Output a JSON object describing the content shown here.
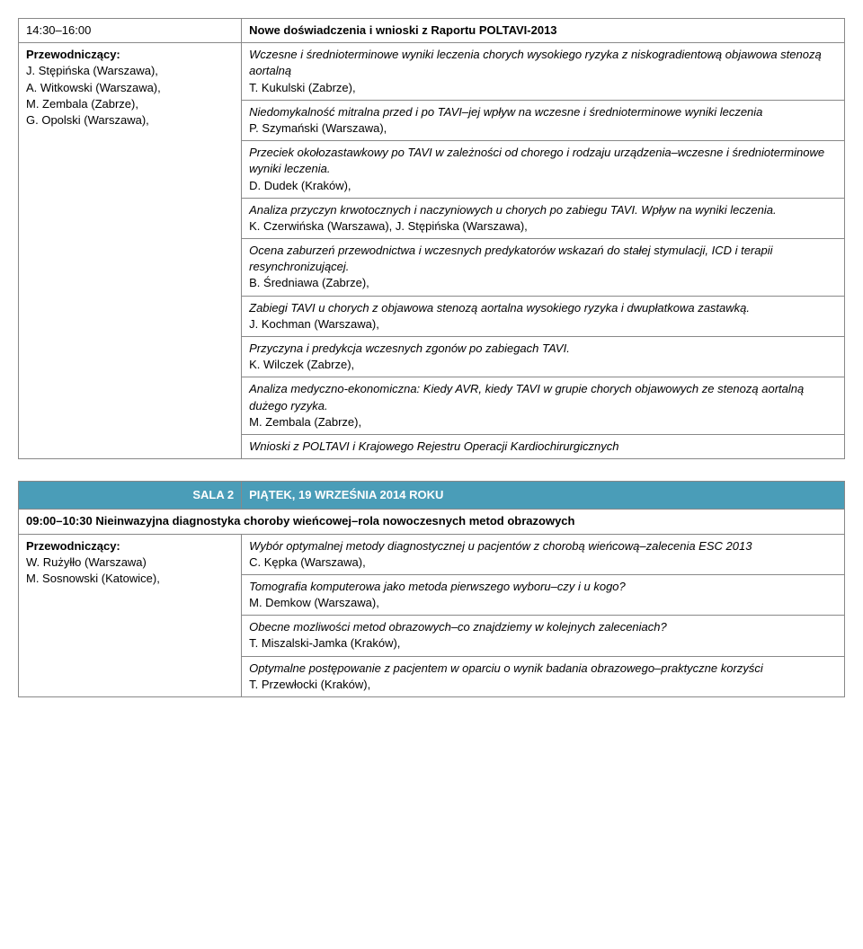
{
  "table1": {
    "col0_time": "14:30–16:00",
    "col1_title": "Nowe doświadczenia i wnioski z Raportu POLTAVI-2013",
    "chair_label": "Przewodniczący:",
    "chairs": [
      "J. Stępińska (Warszawa),",
      "A. Witkowski (Warszawa),",
      "M. Zembala (Zabrze),",
      "G. Opolski (Warszawa),"
    ],
    "rows": [
      {
        "talk_italic": "Wczesne i średnioterminowe wyniki leczenia chorych wysokiego ryzyka z niskogradientową objawowa stenozą aortalną",
        "speaker": "T. Kukulski (Zabrze),"
      },
      {
        "talk_italic": "Niedomykalność mitralna przed i po TAVI–jej wpływ na wczesne i średnioterminowe wyniki leczenia",
        "speaker": "P. Szymański (Warszawa),"
      },
      {
        "talk_italic": "Przeciek okołozastawkowy po TAVI w zależności od chorego i rodzaju urządzenia–wczesne i średnioterminowe wyniki leczenia.",
        "speaker": "D. Dudek (Kraków),"
      },
      {
        "talk_italic": "Analiza przyczyn krwotocznych i naczyniowych u chorych po zabiegu TAVI. Wpływ na wyniki leczenia.",
        "speaker": "K. Czerwińska (Warszawa), J. Stępińska (Warszawa),"
      },
      {
        "talk_italic": "Ocena zaburzeń przewodnictwa i wczesnych predykatorów wskazań do stałej stymulacji, ICD i terapii resynchronizującej.",
        "speaker": "B. Średniawa (Zabrze),"
      },
      {
        "talk_italic": "Zabiegi TAVI u chorych z objawowa stenozą aortalna wysokiego ryzyka i dwupłatkowa zastawką.",
        "speaker": "J. Kochman (Warszawa),"
      },
      {
        "talk_italic": "Przyczyna i predykcja wczesnych zgonów po zabiegach TAVI.",
        "speaker": "K. Wilczek (Zabrze),"
      },
      {
        "talk_italic": "Analiza medyczno-ekonomiczna: Kiedy AVR, kiedy TAVI w grupie chorych objawowych ze stenozą aortalną dużego ryzyka.",
        "speaker": "M. Zembala (Zabrze),"
      },
      {
        "talk_italic": "Wnioski z POLTAVI i Krajowego Rejestru Operacji Kardiochirurgicznych",
        "speaker": ""
      }
    ]
  },
  "table2": {
    "header_left": "SALA 2",
    "header_right": "PIĄTEK, 19 WRZEŚNIA 2014 ROKU",
    "session_title": "09:00–10:30 Nieinwazyjna diagnostyka choroby wieńcowej–rola nowoczesnych metod obrazowych",
    "chair_label": "Przewodniczący:",
    "chairs": [
      "W. Rużyłło (Warszawa)",
      "M. Sosnowski (Katowice),"
    ],
    "rows": [
      {
        "talk_italic": "Wybór optymalnej metody diagnostycznej u pacjentów z chorobą wieńcową–zalecenia ESC 2013",
        "speaker": "C. Kępka (Warszawa),"
      },
      {
        "talk_italic": "Tomografia komputerowa jako metoda pierwszego wyboru–czy i u kogo?",
        "speaker": "M. Demkow (Warszawa),"
      },
      {
        "talk_italic": "Obecne mozliwości metod obrazowych–co znajdziemy w kolejnych zaleceniach?",
        "speaker": "T. Miszalski-Jamka (Kraków),"
      },
      {
        "talk_italic": "Optymalne postępowanie z pacjentem w oparciu o wynik badania obrazowego–praktyczne korzyści",
        "speaker": "T. Przewłocki (Kraków),"
      }
    ]
  }
}
